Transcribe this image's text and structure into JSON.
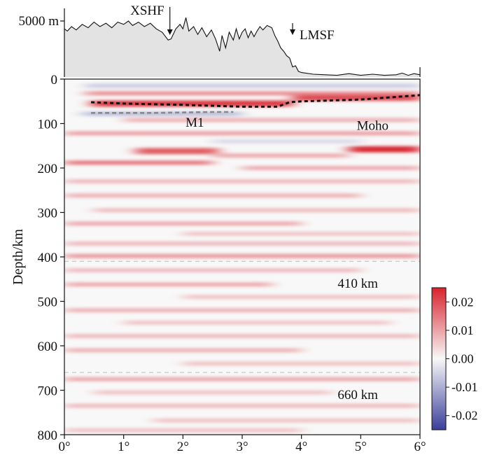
{
  "chart_data": {
    "type": "heatmap",
    "title": "",
    "xlabel": "",
    "ylabel": "Depth/km",
    "xlim": [
      0,
      6
    ],
    "ylim": [
      0,
      800
    ],
    "x_ticks": [
      {
        "value": 0,
        "label": "0°"
      },
      {
        "value": 1,
        "label": "1°"
      },
      {
        "value": 2,
        "label": "2°"
      },
      {
        "value": 3,
        "label": "3°"
      },
      {
        "value": 4,
        "label": "4°"
      },
      {
        "value": 5,
        "label": "5°"
      },
      {
        "value": 6,
        "label": "6°"
      }
    ],
    "y_ticks": [
      {
        "value": 0,
        "label": "0"
      },
      {
        "value": 100,
        "label": "100"
      },
      {
        "value": 200,
        "label": "200"
      },
      {
        "value": 300,
        "label": "300"
      },
      {
        "value": 400,
        "label": "400"
      },
      {
        "value": 500,
        "label": "500"
      },
      {
        "value": 600,
        "label": "600"
      },
      {
        "value": 700,
        "label": "700"
      },
      {
        "value": 800,
        "label": "800"
      }
    ],
    "topography": {
      "ymax_label": "5000 m",
      "ylim": [
        0,
        5000
      ],
      "fill_color": "#e3e3e3",
      "line_color": "#111111",
      "profile": [
        [
          0,
          4300
        ],
        [
          0.05,
          4100
        ],
        [
          0.12,
          4500
        ],
        [
          0.2,
          4200
        ],
        [
          0.3,
          4700
        ],
        [
          0.4,
          4400
        ],
        [
          0.5,
          4900
        ],
        [
          0.6,
          4500
        ],
        [
          0.7,
          4800
        ],
        [
          0.8,
          4400
        ],
        [
          0.9,
          4900
        ],
        [
          1.0,
          4700
        ],
        [
          1.08,
          5000
        ],
        [
          1.15,
          4600
        ],
        [
          1.25,
          4900
        ],
        [
          1.35,
          4500
        ],
        [
          1.45,
          4800
        ],
        [
          1.55,
          4300
        ],
        [
          1.65,
          4000
        ],
        [
          1.75,
          3300
        ],
        [
          1.8,
          3400
        ],
        [
          1.88,
          4300
        ],
        [
          1.95,
          4700
        ],
        [
          2.0,
          4300
        ],
        [
          2.05,
          5300
        ],
        [
          2.1,
          4100
        ],
        [
          2.18,
          4500
        ],
        [
          2.25,
          3800
        ],
        [
          2.32,
          4400
        ],
        [
          2.4,
          3600
        ],
        [
          2.48,
          4200
        ],
        [
          2.55,
          3400
        ],
        [
          2.62,
          2300
        ],
        [
          2.66,
          3700
        ],
        [
          2.72,
          2600
        ],
        [
          2.78,
          4000
        ],
        [
          2.85,
          3300
        ],
        [
          2.9,
          4300
        ],
        [
          2.95,
          3400
        ],
        [
          3.0,
          4000
        ],
        [
          3.05,
          4300
        ],
        [
          3.1,
          3500
        ],
        [
          3.15,
          4100
        ],
        [
          3.2,
          3600
        ],
        [
          3.25,
          4100
        ],
        [
          3.3,
          4500
        ],
        [
          3.35,
          4200
        ],
        [
          3.42,
          4600
        ],
        [
          3.5,
          4400
        ],
        [
          3.55,
          3700
        ],
        [
          3.6,
          3200
        ],
        [
          3.65,
          2600
        ],
        [
          3.7,
          2300
        ],
        [
          3.75,
          1900
        ],
        [
          3.8,
          1700
        ],
        [
          3.85,
          900
        ],
        [
          3.9,
          1000
        ],
        [
          3.95,
          500
        ],
        [
          4.0,
          400
        ],
        [
          4.2,
          250
        ],
        [
          4.4,
          200
        ],
        [
          4.6,
          150
        ],
        [
          4.8,
          300
        ],
        [
          5.0,
          150
        ],
        [
          5.2,
          250
        ],
        [
          5.4,
          150
        ],
        [
          5.6,
          200
        ],
        [
          5.7,
          350
        ],
        [
          5.8,
          150
        ],
        [
          5.9,
          300
        ],
        [
          6.0,
          200
        ]
      ]
    },
    "annotations": {
      "faults": [
        {
          "label": "XSHF",
          "x": 1.78
        },
        {
          "label": "LMSF",
          "x": 3.85
        }
      ],
      "moho": {
        "label": "Moho",
        "label_x": 5.2,
        "label_depth": 105,
        "line_color": "#111111",
        "points": [
          [
            0.45,
            52
          ],
          [
            1,
            55
          ],
          [
            2,
            58
          ],
          [
            3,
            62
          ],
          [
            3.6,
            62
          ],
          [
            3.8,
            52
          ],
          [
            4,
            50
          ],
          [
            5,
            46
          ],
          [
            6,
            36
          ]
        ]
      },
      "m1": {
        "label": "M1",
        "label_x": 2.2,
        "label_depth": 98,
        "line_color": "#888888",
        "points": [
          [
            0.45,
            76
          ],
          [
            1.5,
            76
          ],
          [
            2.5,
            74
          ],
          [
            2.85,
            74
          ]
        ]
      },
      "discontinuities": [
        {
          "label": "410 km",
          "depth": 410,
          "label_x": 4.95,
          "label_depth": 460
        },
        {
          "label": "660 km",
          "depth": 660,
          "label_x": 4.95,
          "label_depth": 710
        }
      ]
    },
    "colorbar": {
      "min": -0.025,
      "max": 0.025,
      "ticks": [
        {
          "value": 0.02,
          "label": "0.02"
        },
        {
          "value": 0.01,
          "label": "0.01"
        },
        {
          "value": 0.0,
          "label": "0.00"
        },
        {
          "value": -0.01,
          "label": "-0.01"
        },
        {
          "value": -0.02,
          "label": "-0.02"
        }
      ],
      "negative_color": "#3a3f9a",
      "zero_color": "#f8f8f8",
      "positive_color": "#d7232c"
    },
    "bands": [
      {
        "depth": 32,
        "amplitude": 0.012,
        "x_start": 0.35,
        "x_end": 6.0
      },
      {
        "depth": 15,
        "amplitude": -0.006,
        "x_start": 0.35,
        "x_end": 6.0
      },
      {
        "depth": 55,
        "amplitude": 0.022,
        "x_start": 0.45,
        "x_end": 3.85
      },
      {
        "depth": 42,
        "amplitude": 0.02,
        "x_start": 3.85,
        "x_end": 6.0
      },
      {
        "depth": 78,
        "amplitude": -0.008,
        "x_start": 0.3,
        "x_end": 3.0
      },
      {
        "depth": 92,
        "amplitude": 0.008,
        "x_start": 1.0,
        "x_end": 6.0
      },
      {
        "depth": 122,
        "amplitude": 0.01,
        "x_start": 0.0,
        "x_end": 6.0
      },
      {
        "depth": 140,
        "amplitude": -0.004,
        "x_start": 2.5,
        "x_end": 5.0
      },
      {
        "depth": 162,
        "amplitude": 0.018,
        "x_start": 1.2,
        "x_end": 2.6
      },
      {
        "depth": 158,
        "amplitude": 0.024,
        "x_start": 4.8,
        "x_end": 6.0
      },
      {
        "depth": 172,
        "amplitude": 0.009,
        "x_start": 2.5,
        "x_end": 4.8
      },
      {
        "depth": 188,
        "amplitude": 0.015,
        "x_start": 0.0,
        "x_end": 2.5
      },
      {
        "depth": 200,
        "amplitude": 0.009,
        "x_start": 3.0,
        "x_end": 6.0
      },
      {
        "depth": 230,
        "amplitude": 0.007,
        "x_start": 0.0,
        "x_end": 6.0
      },
      {
        "depth": 262,
        "amplitude": 0.008,
        "x_start": 0.0,
        "x_end": 5.0
      },
      {
        "depth": 295,
        "amplitude": 0.007,
        "x_start": 0.5,
        "x_end": 6.0
      },
      {
        "depth": 325,
        "amplitude": 0.009,
        "x_start": 0.0,
        "x_end": 4.0
      },
      {
        "depth": 348,
        "amplitude": 0.006,
        "x_start": 2.0,
        "x_end": 6.0
      },
      {
        "depth": 370,
        "amplitude": 0.007,
        "x_start": 0.0,
        "x_end": 6.0
      },
      {
        "depth": 398,
        "amplitude": 0.011,
        "x_start": 0.0,
        "x_end": 6.0
      },
      {
        "depth": 430,
        "amplitude": 0.007,
        "x_start": 0.0,
        "x_end": 5.0
      },
      {
        "depth": 462,
        "amplitude": 0.009,
        "x_start": 0.0,
        "x_end": 3.5
      },
      {
        "depth": 490,
        "amplitude": 0.006,
        "x_start": 2.0,
        "x_end": 6.0
      },
      {
        "depth": 520,
        "amplitude": 0.008,
        "x_start": 0.0,
        "x_end": 6.0
      },
      {
        "depth": 548,
        "amplitude": 0.006,
        "x_start": 1.0,
        "x_end": 5.5
      },
      {
        "depth": 578,
        "amplitude": 0.007,
        "x_start": 0.0,
        "x_end": 6.0
      },
      {
        "depth": 610,
        "amplitude": 0.008,
        "x_start": 0.0,
        "x_end": 4.0
      },
      {
        "depth": 640,
        "amplitude": 0.006,
        "x_start": 2.0,
        "x_end": 6.0
      },
      {
        "depth": 675,
        "amplitude": 0.009,
        "x_start": 0.0,
        "x_end": 6.0
      },
      {
        "depth": 705,
        "amplitude": 0.006,
        "x_start": 0.5,
        "x_end": 4.5
      },
      {
        "depth": 735,
        "amplitude": 0.007,
        "x_start": 0.0,
        "x_end": 6.0
      },
      {
        "depth": 768,
        "amplitude": 0.006,
        "x_start": 1.5,
        "x_end": 6.0
      },
      {
        "depth": 790,
        "amplitude": 0.006,
        "x_start": 0.0,
        "x_end": 4.0
      }
    ]
  }
}
